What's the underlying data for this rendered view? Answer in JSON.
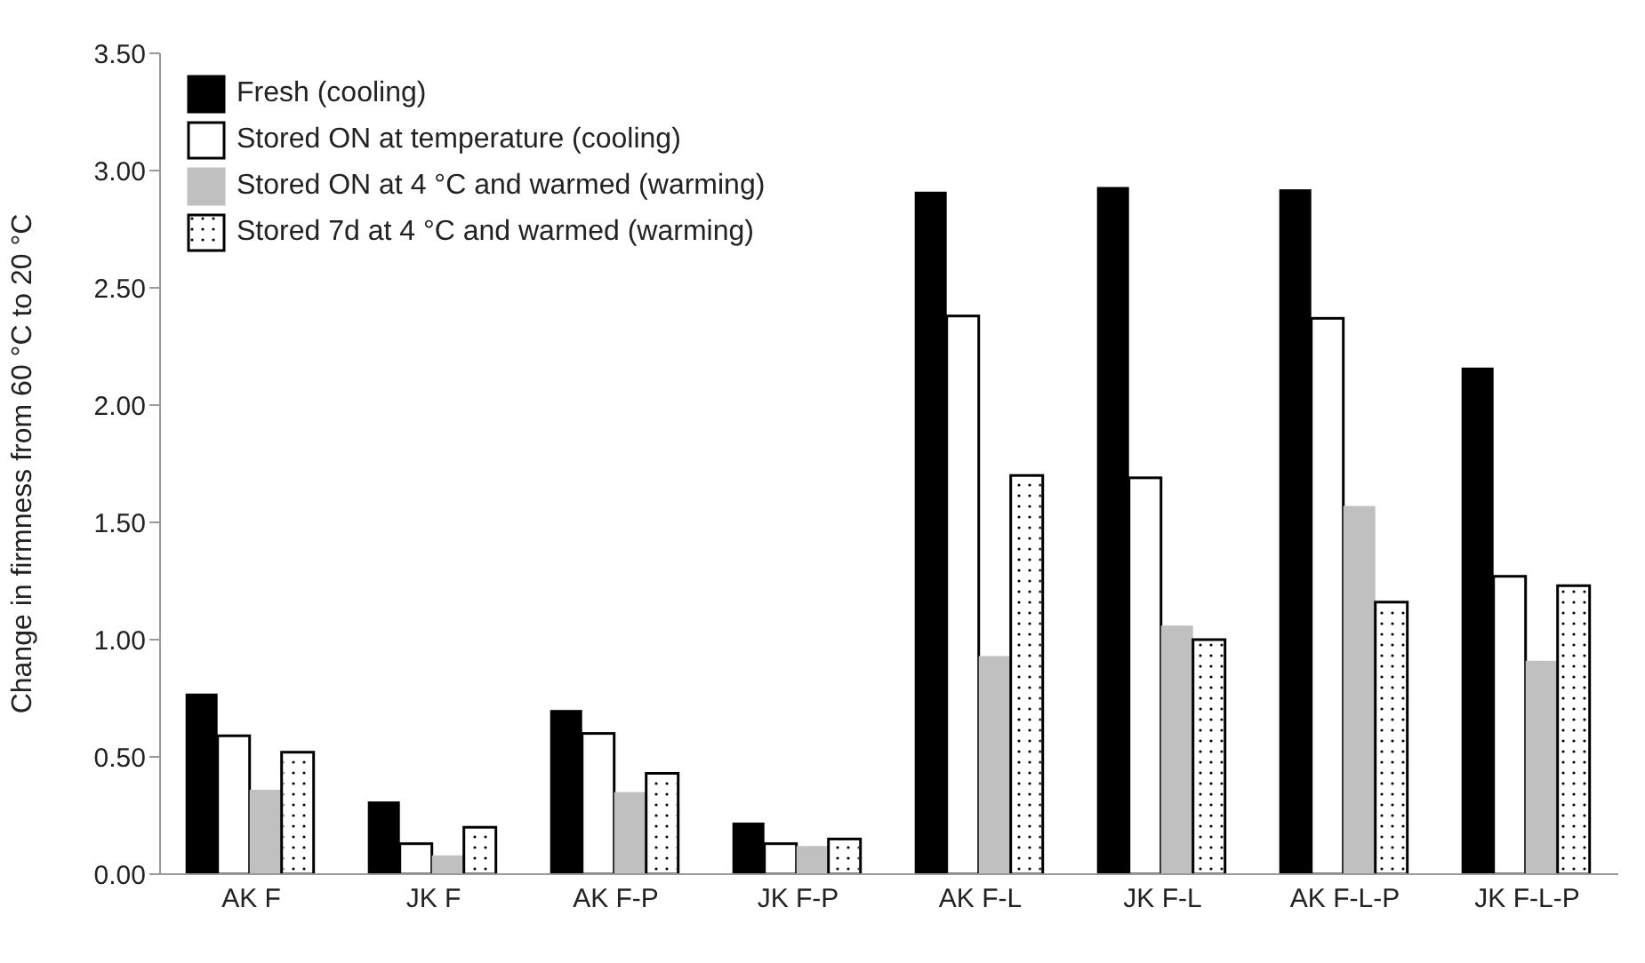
{
  "chart_data": {
    "type": "bar",
    "ylabel": "Change in firmness from 60 °C to 20 °C",
    "categories": [
      "AK F",
      "JK F",
      "AK F-P",
      "JK F-P",
      "AK F-L",
      "JK F-L",
      "AK F-L-P",
      "JK F-L-P"
    ],
    "series": [
      {
        "name": "Fresh (cooling)",
        "color": "#000000",
        "values": [
          0.77,
          0.31,
          0.7,
          0.22,
          2.91,
          2.93,
          2.92,
          2.16
        ]
      },
      {
        "name": "Stored ON at temperature (cooling)",
        "color": "#ffffff",
        "values": [
          0.59,
          0.13,
          0.6,
          0.13,
          2.38,
          1.69,
          2.37,
          1.27
        ]
      },
      {
        "name": "Stored ON at 4 °C and warmed (warming)",
        "color": "#c0c0c0",
        "values": [
          0.36,
          0.08,
          0.35,
          0.12,
          0.93,
          1.06,
          1.57,
          0.91
        ]
      },
      {
        "name": "Stored 7d at 4 °C and warmed (warming)",
        "color": "#ffffff",
        "values": [
          0.52,
          0.2,
          0.43,
          0.15,
          1.7,
          1.0,
          1.16,
          1.23
        ]
      }
    ],
    "ylim": [
      0,
      3.5
    ],
    "yticks": [
      {
        "value": 0,
        "label": "0.00"
      },
      {
        "value": 0.5,
        "label": "0.50"
      },
      {
        "value": 1,
        "label": "1.00"
      },
      {
        "value": 1.5,
        "label": "1.50"
      },
      {
        "value": 2,
        "label": "2.00"
      },
      {
        "value": 2.5,
        "label": "2.50"
      },
      {
        "value": 3,
        "label": "3.00"
      },
      {
        "value": 3.5,
        "label": "3.50"
      }
    ],
    "grid": false,
    "legend": "top left"
  }
}
